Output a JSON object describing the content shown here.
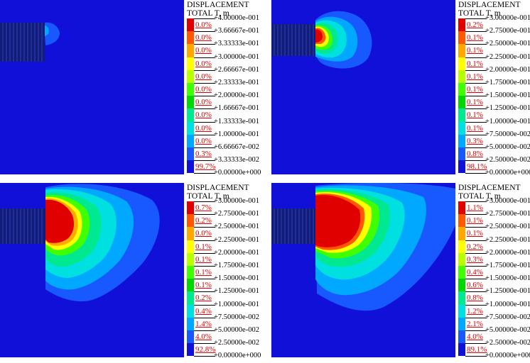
{
  "colors": {
    "background": "#1010d8",
    "scale": [
      "#1010d8",
      "#1858ff",
      "#00a8ff",
      "#00e0e0",
      "#00e890",
      "#00d800",
      "#40ff00",
      "#b8ff00",
      "#ffff00",
      "#ffa800",
      "#ff5800",
      "#e00000"
    ]
  },
  "panels": [
    {
      "id": "a",
      "legend": {
        "title1": "DISPLACEMENT",
        "title2": "TOTAL T, m",
        "ticks": [
          "+4.00000e-001",
          "+3.66667e-001",
          "+3.33333e-001",
          "+3.00000e-001",
          "+2.66667e-001",
          "+2.33333e-001",
          "+2.00000e-001",
          "+1.66667e-001",
          "+1.33333e-001",
          "+1.00000e-001",
          "+6.66667e-002",
          "+3.33333e-002",
          "+0.00000e+000"
        ],
        "percents": [
          "0.0%",
          "0.0%",
          "0.0%",
          "0.0%",
          "0.0%",
          "0.0%",
          "0.0%",
          "0.0%",
          "0.0%",
          "0.0%",
          "0.3%",
          "99.7%"
        ]
      }
    },
    {
      "id": "b",
      "legend": {
        "title1": "DISPLACEMENT",
        "title2": "TOTAL T, m",
        "ticks": [
          "+3.00000e-001",
          "+2.75000e-001",
          "+2.50000e-001",
          "+2.25000e-001",
          "+2.00000e-001",
          "+1.75000e-001",
          "+1.50000e-001",
          "+1.25000e-001",
          "+1.00000e-001",
          "+7.50000e-002",
          "+5.00000e-002",
          "+2.50000e-002",
          "+0.00000e+000"
        ],
        "percents": [
          "0.2%",
          "0.1%",
          "0.1%",
          "0.1%",
          "0.1%",
          "0.1%",
          "0.1%",
          "0.1%",
          "0.1%",
          "0.3%",
          "0.8%",
          "98.1%"
        ]
      }
    },
    {
      "id": "c",
      "legend": {
        "title1": "DISPLACEMENT",
        "title2": "TOTAL T, m",
        "ticks": [
          "+3.00000e-001",
          "+2.75000e-001",
          "+2.50000e-001",
          "+2.25000e-001",
          "+2.00000e-001",
          "+1.75000e-001",
          "+1.50000e-001",
          "+1.25000e-001",
          "+1.00000e-001",
          "+7.50000e-002",
          "+5.00000e-002",
          "+2.50000e-002",
          "+0.00000e+000"
        ],
        "percents": [
          "0.7%",
          "0.2%",
          "0.0%",
          "0.1%",
          "0.1%",
          "0.1%",
          "0.1%",
          "0.2%",
          "0.4%",
          "1.4%",
          "4.0%",
          "92.8%"
        ]
      }
    },
    {
      "id": "d",
      "legend": {
        "title1": "DISPLACEMENT",
        "title2": "TOTAL T, m",
        "ticks": [
          "+3.00000e-001",
          "+2.75000e-001",
          "+2.50000e-001",
          "+2.25000e-001",
          "+2.00000e-001",
          "+1.75000e-001",
          "+1.50000e-001",
          "+1.25000e-001",
          "+1.00000e-001",
          "+7.50000e-002",
          "+5.00000e-002",
          "+2.50000e-002",
          "+0.00000e+000"
        ],
        "percents": [
          "1.1%",
          "0.1%",
          "0.1%",
          "0.2%",
          "0.3%",
          "0.4%",
          "0.6%",
          "0.8%",
          "1.2%",
          "2.1%",
          "4.0%",
          "89.1%"
        ]
      }
    }
  ]
}
